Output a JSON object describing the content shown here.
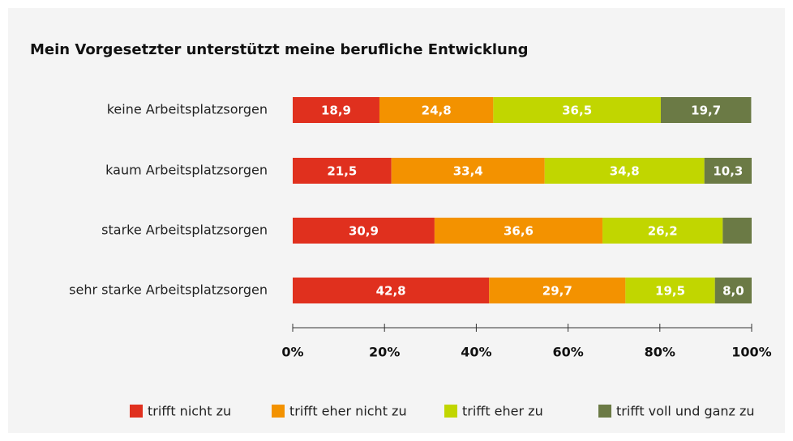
{
  "chart_data": {
    "type": "stacked-bar-horizontal",
    "title": "Mein Vorgesetzter unterstützt meine berufliche Entwicklung",
    "categories": [
      "keine Arbeitsplatzsorgen",
      "kaum Arbeitsplatzsorgen",
      "starke Arbeitsplatzsorgen",
      "sehr starke Arbeitsplatzsorgen"
    ],
    "series": [
      {
        "name": "trifft nicht zu",
        "color": "#e0301e",
        "values": [
          18.9,
          21.5,
          30.9,
          42.8
        ],
        "value_labels": [
          "18,9",
          "21,5",
          "30,9",
          "42,8"
        ]
      },
      {
        "name": "trifft eher nicht zu",
        "color": "#f39200",
        "values": [
          24.8,
          33.4,
          36.6,
          29.7
        ],
        "value_labels": [
          "24,8",
          "33,4",
          "36,6",
          "29,7"
        ]
      },
      {
        "name": "trifft eher zu",
        "color": "#c1d600",
        "values": [
          36.5,
          34.8,
          26.2,
          19.5
        ],
        "value_labels": [
          "36,5",
          "34,8",
          "26,2",
          "19,5"
        ]
      },
      {
        "name": "trifft voll und ganz zu",
        "color": "#6b7a45",
        "values": [
          19.7,
          10.3,
          6.3,
          8.0
        ],
        "value_labels": [
          "19,7",
          "10,3",
          null,
          "8,0"
        ]
      }
    ],
    "xlim": [
      0,
      100
    ],
    "xticks": [
      {
        "value": 0,
        "label": "0%"
      },
      {
        "value": 20,
        "label": "20%"
      },
      {
        "value": 40,
        "label": "40%"
      },
      {
        "value": 60,
        "label": "60%"
      },
      {
        "value": 80,
        "label": "80%"
      },
      {
        "value": 100,
        "label": "100%"
      }
    ]
  }
}
